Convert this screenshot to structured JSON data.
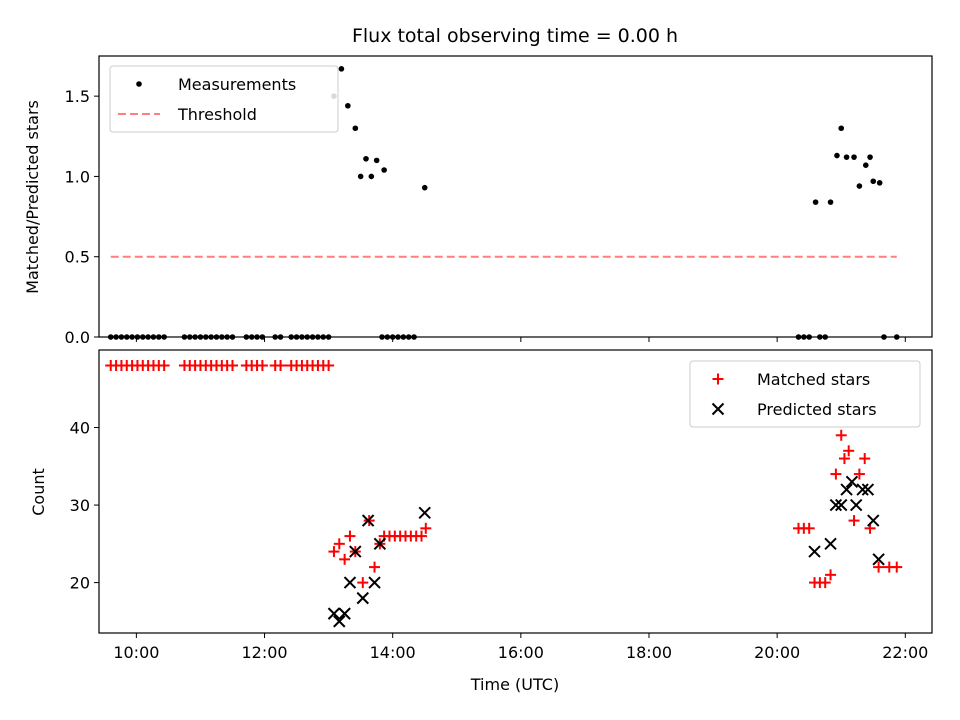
{
  "chart_data": [
    {
      "type": "scatter",
      "title": "Flux total observing time = 0.00 h",
      "xlabel": "",
      "ylabel": "Matched/Predicted stars",
      "xlim": [
        "09:25",
        "22:25"
      ],
      "ylim": [
        0,
        1.75
      ],
      "x_ticks": [
        "10:00",
        "12:00",
        "14:00",
        "16:00",
        "18:00",
        "20:00",
        "22:00"
      ],
      "x_ticklabels_visible": false,
      "y_ticks": [
        0.0,
        0.5,
        1.0,
        1.5
      ],
      "y_ticklabels": [
        "0.0",
        "0.5",
        "1.0",
        "1.5"
      ],
      "legend": {
        "position": "top-left",
        "entries": [
          "Measurements",
          "Threshold"
        ]
      },
      "grid": false,
      "colors": {
        "measurements": "#000000",
        "threshold": "#ff7f7f"
      },
      "series": [
        {
          "name": "Measurements",
          "kind": "scatter",
          "points": [
            [
              "09:36",
              0
            ],
            [
              "09:41",
              0
            ],
            [
              "09:46",
              0
            ],
            [
              "09:51",
              0
            ],
            [
              "09:56",
              0
            ],
            [
              "10:01",
              0
            ],
            [
              "10:06",
              0
            ],
            [
              "10:11",
              0
            ],
            [
              "10:16",
              0
            ],
            [
              "10:21",
              0
            ],
            [
              "10:26",
              0
            ],
            [
              "10:45",
              0
            ],
            [
              "10:50",
              0
            ],
            [
              "10:55",
              0
            ],
            [
              "11:00",
              0
            ],
            [
              "11:05",
              0
            ],
            [
              "11:10",
              0
            ],
            [
              "11:15",
              0
            ],
            [
              "11:20",
              0
            ],
            [
              "11:25",
              0
            ],
            [
              "11:30",
              0
            ],
            [
              "11:43",
              0
            ],
            [
              "11:48",
              0
            ],
            [
              "11:53",
              0
            ],
            [
              "11:58",
              0
            ],
            [
              "12:10",
              0
            ],
            [
              "12:15",
              0
            ],
            [
              "12:25",
              0
            ],
            [
              "12:30",
              0
            ],
            [
              "12:35",
              0
            ],
            [
              "12:40",
              0
            ],
            [
              "12:45",
              0
            ],
            [
              "12:50",
              0
            ],
            [
              "12:55",
              0
            ],
            [
              "13:00",
              0
            ],
            [
              "13:05",
              1.5
            ],
            [
              "13:12",
              1.67
            ],
            [
              "13:18",
              1.44
            ],
            [
              "13:25",
              1.3
            ],
            [
              "13:30",
              1.0
            ],
            [
              "13:35",
              1.11
            ],
            [
              "13:40",
              1.0
            ],
            [
              "13:45",
              1.1
            ],
            [
              "13:52",
              1.04
            ],
            [
              "13:50",
              0
            ],
            [
              "13:55",
              0
            ],
            [
              "14:00",
              0
            ],
            [
              "14:05",
              0
            ],
            [
              "14:10",
              0
            ],
            [
              "14:15",
              0
            ],
            [
              "14:20",
              0
            ],
            [
              "14:30",
              0.93
            ],
            [
              "20:20",
              0
            ],
            [
              "20:25",
              0
            ],
            [
              "20:30",
              0
            ],
            [
              "20:40",
              0
            ],
            [
              "20:45",
              0
            ],
            [
              "20:36",
              0.84
            ],
            [
              "20:50",
              0.84
            ],
            [
              "20:56",
              1.13
            ],
            [
              "21:00",
              1.3
            ],
            [
              "21:05",
              1.12
            ],
            [
              "21:12",
              1.12
            ],
            [
              "21:17",
              0.94
            ],
            [
              "21:23",
              1.07
            ],
            [
              "21:27",
              1.12
            ],
            [
              "21:30",
              0.97
            ],
            [
              "21:36",
              0.96
            ],
            [
              "21:40",
              0
            ],
            [
              "21:52",
              0
            ]
          ]
        },
        {
          "name": "Threshold",
          "kind": "line",
          "style": "dashed",
          "points": [
            [
              "09:36",
              0.5
            ],
            [
              "21:52",
              0.5
            ]
          ]
        }
      ]
    },
    {
      "type": "scatter",
      "title": "",
      "xlabel": "Time (UTC)",
      "ylabel": "Count",
      "xlim": [
        "09:25",
        "22:25"
      ],
      "ylim": [
        13.5,
        50
      ],
      "x_ticks": [
        "10:00",
        "12:00",
        "14:00",
        "16:00",
        "18:00",
        "20:00",
        "22:00"
      ],
      "x_ticklabels": [
        "10:00",
        "12:00",
        "14:00",
        "16:00",
        "18:00",
        "20:00",
        "22:00"
      ],
      "y_ticks": [
        20,
        30,
        40
      ],
      "y_ticklabels": [
        "20",
        "30",
        "40"
      ],
      "legend": {
        "position": "top-right",
        "entries": [
          "Matched stars",
          "Predicted stars"
        ]
      },
      "grid": false,
      "colors": {
        "matched": "#ff0000",
        "predicted": "#000000"
      },
      "series": [
        {
          "name": "Matched stars",
          "marker": "plus",
          "points": [
            [
              "09:36",
              48
            ],
            [
              "09:41",
              48
            ],
            [
              "09:46",
              48
            ],
            [
              "09:51",
              48
            ],
            [
              "09:56",
              48
            ],
            [
              "10:01",
              48
            ],
            [
              "10:06",
              48
            ],
            [
              "10:11",
              48
            ],
            [
              "10:16",
              48
            ],
            [
              "10:21",
              48
            ],
            [
              "10:26",
              48
            ],
            [
              "10:45",
              48
            ],
            [
              "10:50",
              48
            ],
            [
              "10:55",
              48
            ],
            [
              "11:00",
              48
            ],
            [
              "11:05",
              48
            ],
            [
              "11:10",
              48
            ],
            [
              "11:15",
              48
            ],
            [
              "11:20",
              48
            ],
            [
              "11:25",
              48
            ],
            [
              "11:30",
              48
            ],
            [
              "11:43",
              48
            ],
            [
              "11:48",
              48
            ],
            [
              "11:53",
              48
            ],
            [
              "11:58",
              48
            ],
            [
              "12:10",
              48
            ],
            [
              "12:15",
              48
            ],
            [
              "12:25",
              48
            ],
            [
              "12:30",
              48
            ],
            [
              "12:35",
              48
            ],
            [
              "12:40",
              48
            ],
            [
              "12:45",
              48
            ],
            [
              "12:50",
              48
            ],
            [
              "12:55",
              48
            ],
            [
              "13:00",
              48
            ],
            [
              "13:05",
              24
            ],
            [
              "13:10",
              25
            ],
            [
              "13:15",
              23
            ],
            [
              "13:20",
              26
            ],
            [
              "13:25",
              24
            ],
            [
              "13:32",
              20
            ],
            [
              "13:38",
              28
            ],
            [
              "13:43",
              22
            ],
            [
              "13:48",
              25
            ],
            [
              "13:52",
              26
            ],
            [
              "13:57",
              26
            ],
            [
              "14:02",
              26
            ],
            [
              "14:07",
              26
            ],
            [
              "14:12",
              26
            ],
            [
              "14:17",
              26
            ],
            [
              "14:22",
              26
            ],
            [
              "14:27",
              26
            ],
            [
              "14:31",
              27
            ],
            [
              "20:20",
              27
            ],
            [
              "20:25",
              27
            ],
            [
              "20:30",
              27
            ],
            [
              "20:35",
              20
            ],
            [
              "20:40",
              20
            ],
            [
              "20:45",
              20
            ],
            [
              "20:50",
              21
            ],
            [
              "20:55",
              34
            ],
            [
              "21:00",
              39
            ],
            [
              "21:03",
              36
            ],
            [
              "21:07",
              37
            ],
            [
              "21:12",
              28
            ],
            [
              "21:17",
              34
            ],
            [
              "21:22",
              36
            ],
            [
              "21:27",
              27
            ],
            [
              "21:35",
              22
            ],
            [
              "21:45",
              22
            ],
            [
              "21:52",
              22
            ]
          ]
        },
        {
          "name": "Predicted stars",
          "marker": "x",
          "points": [
            [
              "13:05",
              16
            ],
            [
              "13:10",
              15
            ],
            [
              "13:15",
              16
            ],
            [
              "13:20",
              20
            ],
            [
              "13:25",
              24
            ],
            [
              "13:32",
              18
            ],
            [
              "13:37",
              28
            ],
            [
              "13:43",
              20
            ],
            [
              "13:48",
              25
            ],
            [
              "14:30",
              29
            ],
            [
              "20:35",
              24
            ],
            [
              "20:50",
              25
            ],
            [
              "20:55",
              30
            ],
            [
              "21:00",
              30
            ],
            [
              "21:05",
              32
            ],
            [
              "21:10",
              33
            ],
            [
              "21:14",
              30
            ],
            [
              "21:20",
              32
            ],
            [
              "21:25",
              32
            ],
            [
              "21:30",
              28
            ],
            [
              "21:35",
              23
            ]
          ]
        }
      ]
    }
  ]
}
